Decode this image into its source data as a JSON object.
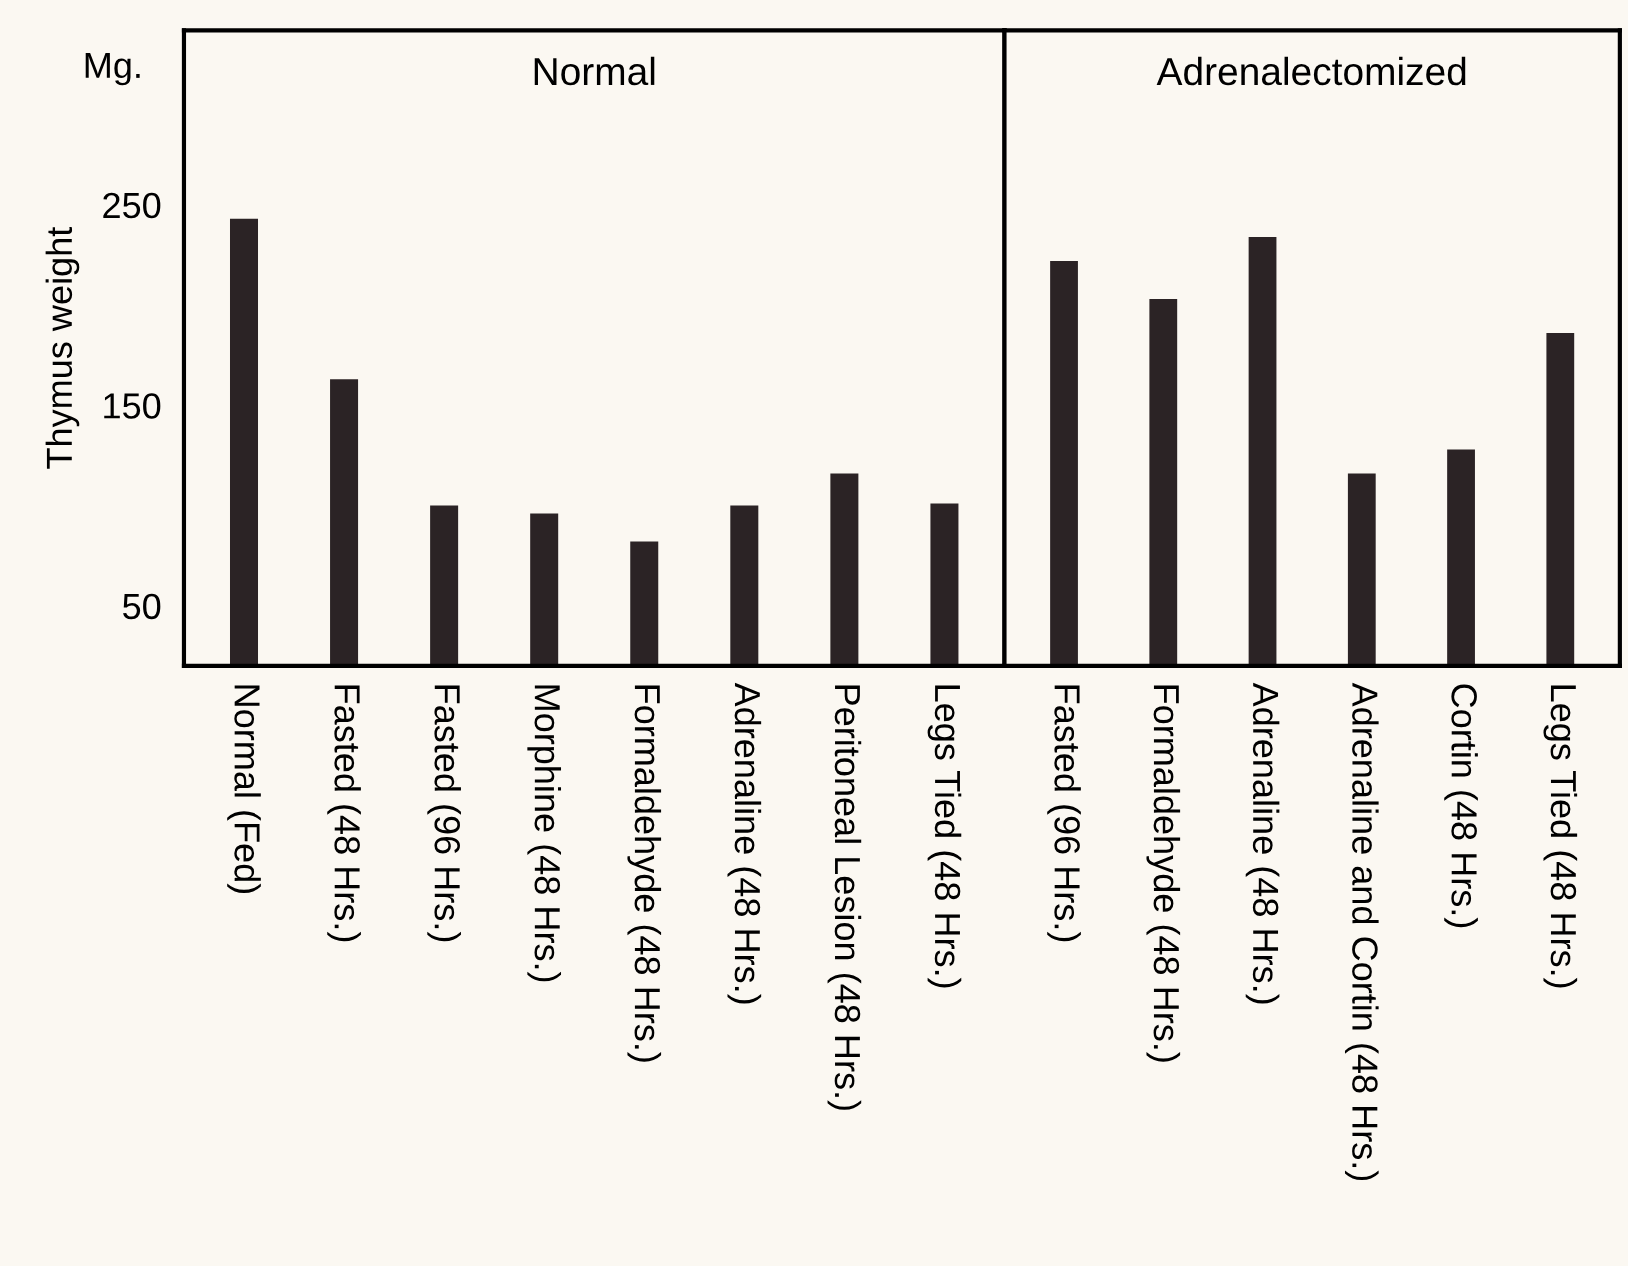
{
  "chart_data": [
    {
      "type": "bar",
      "title": "Normal",
      "ylabel": "Thymus weight",
      "annotations": [
        "Mg."
      ],
      "categories": [
        "Normal (Fed)",
        "Fasted (48 Hrs.)",
        "Fasted (96 Hrs.)",
        "Morphine (48 Hrs.)",
        "Formaldehyde (48 Hrs.)",
        "Adrenaline (48 Hrs.)",
        "Peritoneal Lesion (48 Hrs.)",
        "Legs Tied (48 Hrs.)"
      ],
      "values": [
        243,
        163,
        100,
        96,
        82,
        100,
        116,
        101
      ],
      "color": "#2b2325",
      "ylim": [
        20,
        337
      ],
      "yticks": [
        50,
        150,
        250
      ]
    },
    {
      "type": "bar",
      "title": "Adrenalectomized",
      "categories": [
        "Fasted (96 Hrs.)",
        "Formaldehyde (48 Hrs.)",
        "Adrenaline (48 Hrs.)",
        "Adrenaline and Cortin (48 Hrs.)",
        "Cortin (48 Hrs.)",
        "Legs Tied (48 Hrs.)"
      ],
      "values": [
        222,
        203,
        234,
        116,
        128,
        186
      ],
      "color": "#2b2325",
      "ylim": [
        20,
        337
      ],
      "yticks": [
        50,
        150,
        250
      ],
      "tick_labels": "x"
    }
  ]
}
